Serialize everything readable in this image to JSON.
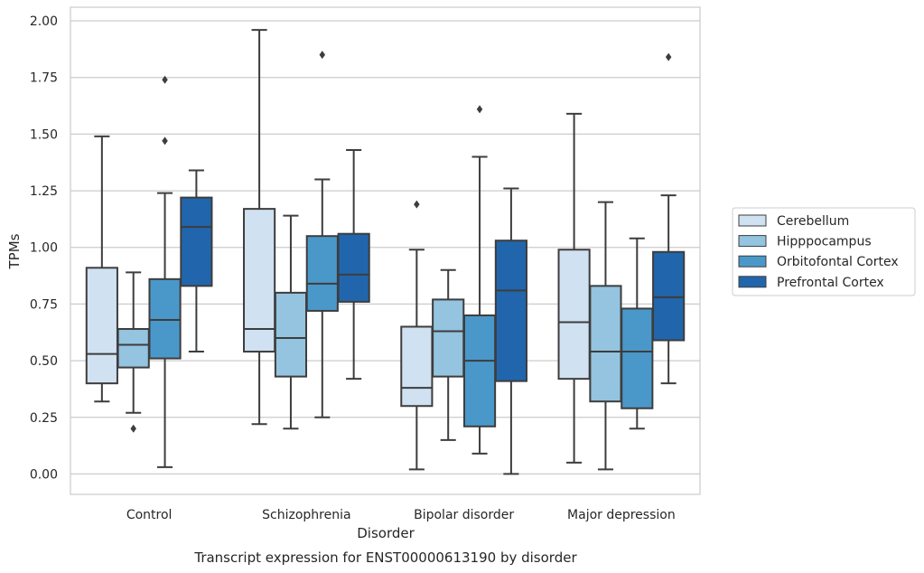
{
  "chart_data": {
    "type": "box",
    "caption": "Transcript expression for ENST00000613190 by disorder",
    "xlabel": "Disorder",
    "ylabel": "TPMs",
    "ylim": [
      -0.09,
      2.06
    ],
    "yticks": [
      "0.00",
      "0.25",
      "0.50",
      "0.75",
      "1.00",
      "1.25",
      "1.50",
      "1.75",
      "2.00"
    ],
    "grid": "horizontal",
    "legend_position": "right",
    "categories": [
      "Control",
      "Schizophrenia",
      "Bipolar disorder",
      "Major depression"
    ],
    "series": [
      {
        "name": "Cerebellum",
        "color": "#d0e1f2",
        "boxes": [
          {
            "min": 0.32,
            "q1": 0.4,
            "median": 0.53,
            "q3": 0.91,
            "max": 1.49,
            "outliers": []
          },
          {
            "min": 0.22,
            "q1": 0.54,
            "median": 0.64,
            "q3": 1.17,
            "max": 1.96,
            "outliers": []
          },
          {
            "min": 0.02,
            "q1": 0.3,
            "median": 0.38,
            "q3": 0.65,
            "max": 0.99,
            "outliers": [
              1.19
            ]
          },
          {
            "min": 0.05,
            "q1": 0.42,
            "median": 0.67,
            "q3": 0.99,
            "max": 1.59,
            "outliers": []
          }
        ]
      },
      {
        "name": "Hipppocampus",
        "color": "#94c4df",
        "boxes": [
          {
            "min": 0.27,
            "q1": 0.47,
            "median": 0.57,
            "q3": 0.64,
            "max": 0.89,
            "outliers": [
              0.2
            ]
          },
          {
            "min": 0.2,
            "q1": 0.43,
            "median": 0.6,
            "q3": 0.8,
            "max": 1.14,
            "outliers": []
          },
          {
            "min": 0.15,
            "q1": 0.43,
            "median": 0.63,
            "q3": 0.77,
            "max": 0.9,
            "outliers": []
          },
          {
            "min": 0.02,
            "q1": 0.32,
            "median": 0.54,
            "q3": 0.83,
            "max": 1.2,
            "outliers": []
          }
        ]
      },
      {
        "name": "Orbitofontal Cortex",
        "color": "#4a98c9",
        "boxes": [
          {
            "min": 0.03,
            "q1": 0.51,
            "median": 0.68,
            "q3": 0.86,
            "max": 1.24,
            "outliers": [
              1.47,
              1.74
            ]
          },
          {
            "min": 0.25,
            "q1": 0.72,
            "median": 0.84,
            "q3": 1.05,
            "max": 1.3,
            "outliers": [
              1.85
            ]
          },
          {
            "min": 0.09,
            "q1": 0.21,
            "median": 0.5,
            "q3": 0.7,
            "max": 1.4,
            "outliers": [
              1.61
            ]
          },
          {
            "min": 0.2,
            "q1": 0.29,
            "median": 0.54,
            "q3": 0.73,
            "max": 1.04,
            "outliers": []
          }
        ]
      },
      {
        "name": "Prefrontal Cortex",
        "color": "#2166ac",
        "boxes": [
          {
            "min": 0.54,
            "q1": 0.83,
            "median": 1.09,
            "q3": 1.22,
            "max": 1.34,
            "outliers": []
          },
          {
            "min": 0.42,
            "q1": 0.76,
            "median": 0.88,
            "q3": 1.06,
            "max": 1.43,
            "outliers": []
          },
          {
            "min": 0.0,
            "q1": 0.41,
            "median": 0.81,
            "q3": 1.03,
            "max": 1.26,
            "outliers": []
          },
          {
            "min": 0.4,
            "q1": 0.59,
            "median": 0.78,
            "q3": 0.98,
            "max": 1.23,
            "outliers": [
              1.84
            ]
          }
        ]
      }
    ]
  }
}
